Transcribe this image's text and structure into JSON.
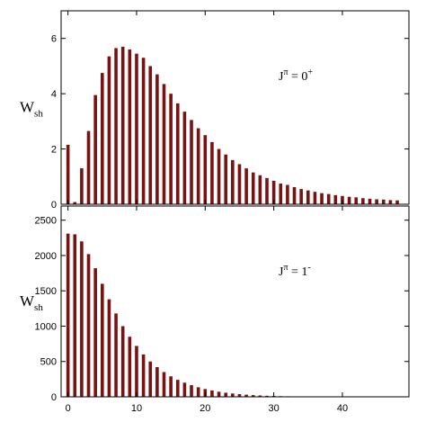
{
  "chart_data": [
    {
      "type": "bar",
      "ylabel": "W",
      "ylabel_sub": "sh",
      "annotation": [
        {
          "text": "J"
        },
        {
          "text": "π",
          "sup": true
        },
        {
          "text": " = 0"
        },
        {
          "text": "+",
          "sup": true
        }
      ],
      "x": [
        0,
        1,
        2,
        3,
        4,
        5,
        6,
        7,
        8,
        9,
        10,
        11,
        12,
        13,
        14,
        15,
        16,
        17,
        18,
        19,
        20,
        21,
        22,
        23,
        24,
        25,
        26,
        27,
        28,
        29,
        30,
        31,
        32,
        33,
        34,
        35,
        36,
        37,
        38,
        39,
        40,
        41,
        42,
        43,
        44,
        45,
        46,
        47,
        48
      ],
      "values": [
        2.15,
        0.08,
        1.3,
        2.65,
        3.95,
        4.75,
        5.35,
        5.65,
        5.7,
        5.6,
        5.45,
        5.3,
        5.0,
        4.7,
        4.35,
        4.0,
        3.65,
        3.35,
        3.05,
        2.75,
        2.5,
        2.25,
        2.0,
        1.8,
        1.6,
        1.45,
        1.3,
        1.15,
        1.05,
        0.95,
        0.85,
        0.75,
        0.7,
        0.62,
        0.55,
        0.5,
        0.45,
        0.4,
        0.37,
        0.33,
        0.3,
        0.27,
        0.25,
        0.22,
        0.2,
        0.18,
        0.17,
        0.15,
        0.14
      ],
      "color": "#7a1212",
      "xlim": [
        -1,
        49.7
      ],
      "ylim": [
        0,
        7
      ],
      "xticks": [
        0,
        10,
        20,
        30,
        40
      ],
      "yticks": [
        0,
        2,
        4,
        6
      ],
      "show_xtick_labels": false
    },
    {
      "type": "bar",
      "ylabel": "W",
      "ylabel_sub": "sh",
      "annotation": [
        {
          "text": "J"
        },
        {
          "text": "π",
          "sup": true
        },
        {
          "text": " = 1"
        },
        {
          "text": "-",
          "sup": true
        }
      ],
      "x": [
        0,
        1,
        2,
        3,
        4,
        5,
        6,
        7,
        8,
        9,
        10,
        11,
        12,
        13,
        14,
        15,
        16,
        17,
        18,
        19,
        20,
        21,
        22,
        23,
        24,
        25,
        26,
        27,
        28,
        29,
        30,
        31,
        32,
        33,
        34,
        35,
        36,
        37,
        38,
        39,
        40,
        41,
        42,
        43,
        44,
        45,
        46,
        47,
        48
      ],
      "values": [
        2310,
        2300,
        2200,
        2020,
        1820,
        1600,
        1380,
        1180,
        1000,
        850,
        720,
        600,
        500,
        420,
        350,
        290,
        240,
        200,
        165,
        135,
        110,
        90,
        72,
        58,
        47,
        38,
        30,
        24,
        19,
        15,
        12,
        9,
        7,
        5,
        4,
        3,
        2,
        2,
        1,
        1,
        1,
        0,
        0,
        0,
        0,
        0,
        0,
        0,
        0
      ],
      "color": "#7a1212",
      "xlim": [
        -1,
        49.7
      ],
      "ylim": [
        0,
        2700
      ],
      "xticks": [
        0,
        10,
        20,
        30,
        40
      ],
      "yticks": [
        0,
        500,
        1000,
        1500,
        2000,
        2500
      ],
      "show_xtick_labels": true
    }
  ]
}
